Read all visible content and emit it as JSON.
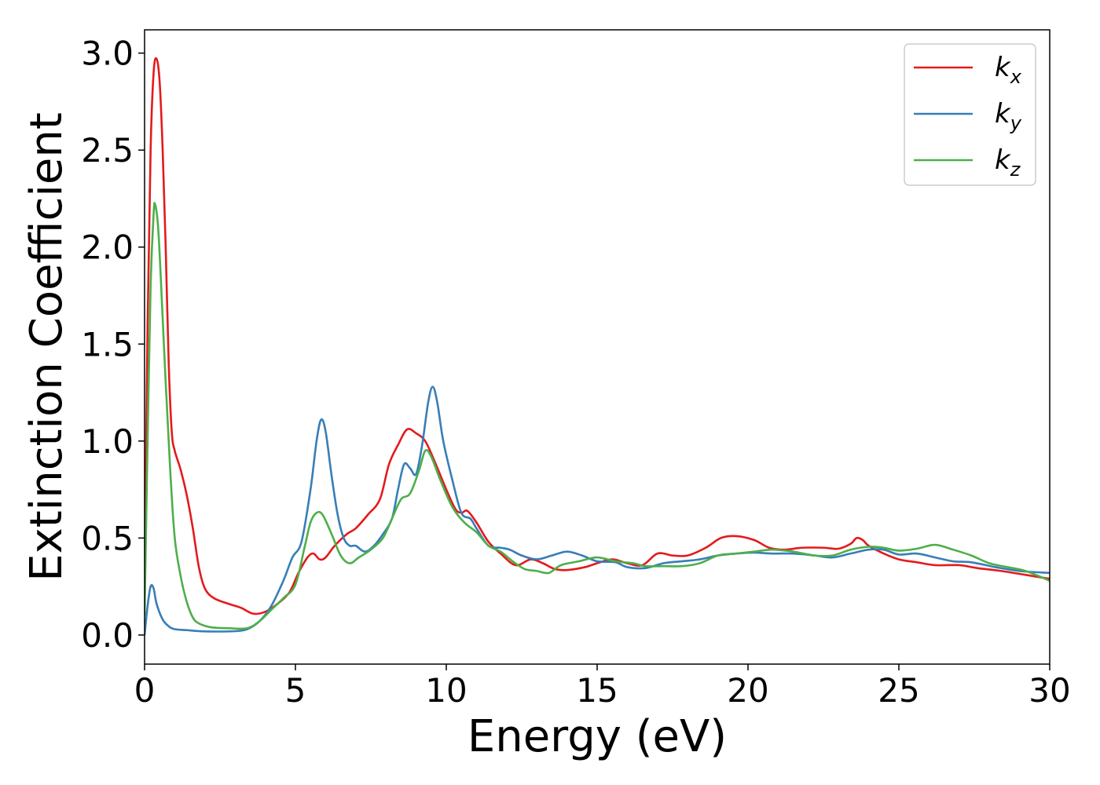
{
  "chart_data": {
    "type": "line",
    "xlabel": "Energy (eV)",
    "ylabel": "Extinction Coefficient",
    "xlim": [
      0,
      30
    ],
    "ylim": [
      -0.15,
      3.12
    ],
    "xticks": [
      "0",
      "5",
      "10",
      "15",
      "20",
      "25",
      "30"
    ],
    "yticks": [
      "0.0",
      "0.5",
      "1.0",
      "1.5",
      "2.0",
      "2.5",
      "3.0"
    ],
    "grid": false,
    "legend_position": "top-right",
    "series": [
      {
        "name": "k",
        "sub": "x",
        "color": "#e41a1c",
        "points": [
          [
            0,
            0.2
          ],
          [
            0.1,
            1.6
          ],
          [
            0.2,
            2.5
          ],
          [
            0.3,
            2.9
          ],
          [
            0.4,
            2.97
          ],
          [
            0.5,
            2.85
          ],
          [
            0.6,
            2.5
          ],
          [
            0.7,
            2.0
          ],
          [
            0.8,
            1.4
          ],
          [
            0.9,
            1.05
          ],
          [
            1.0,
            0.95
          ],
          [
            1.2,
            0.85
          ],
          [
            1.4,
            0.72
          ],
          [
            1.6,
            0.55
          ],
          [
            1.8,
            0.35
          ],
          [
            2.0,
            0.24
          ],
          [
            2.3,
            0.19
          ],
          [
            2.8,
            0.16
          ],
          [
            3.2,
            0.14
          ],
          [
            3.6,
            0.11
          ],
          [
            4.0,
            0.12
          ],
          [
            4.4,
            0.16
          ],
          [
            4.8,
            0.22
          ],
          [
            5.1,
            0.32
          ],
          [
            5.4,
            0.4
          ],
          [
            5.6,
            0.42
          ],
          [
            5.8,
            0.39
          ],
          [
            6.0,
            0.4
          ],
          [
            6.3,
            0.46
          ],
          [
            6.7,
            0.52
          ],
          [
            7.0,
            0.55
          ],
          [
            7.4,
            0.62
          ],
          [
            7.8,
            0.7
          ],
          [
            8.1,
            0.88
          ],
          [
            8.4,
            0.98
          ],
          [
            8.7,
            1.06
          ],
          [
            9.0,
            1.04
          ],
          [
            9.3,
            1.0
          ],
          [
            9.6,
            0.9
          ],
          [
            10.0,
            0.75
          ],
          [
            10.3,
            0.65
          ],
          [
            10.5,
            0.63
          ],
          [
            10.7,
            0.64
          ],
          [
            11.0,
            0.58
          ],
          [
            11.4,
            0.48
          ],
          [
            11.8,
            0.42
          ],
          [
            12.3,
            0.36
          ],
          [
            12.8,
            0.39
          ],
          [
            13.2,
            0.37
          ],
          [
            13.6,
            0.34
          ],
          [
            14.0,
            0.335
          ],
          [
            14.6,
            0.35
          ],
          [
            15.0,
            0.37
          ],
          [
            15.5,
            0.39
          ],
          [
            16.0,
            0.37
          ],
          [
            16.5,
            0.36
          ],
          [
            17.0,
            0.42
          ],
          [
            17.5,
            0.41
          ],
          [
            18.0,
            0.41
          ],
          [
            18.6,
            0.45
          ],
          [
            19.1,
            0.5
          ],
          [
            19.6,
            0.51
          ],
          [
            20.2,
            0.49
          ],
          [
            20.7,
            0.45
          ],
          [
            21.2,
            0.44
          ],
          [
            21.8,
            0.45
          ],
          [
            22.5,
            0.45
          ],
          [
            23.0,
            0.445
          ],
          [
            23.4,
            0.47
          ],
          [
            23.6,
            0.5
          ],
          [
            23.8,
            0.49
          ],
          [
            24.0,
            0.46
          ],
          [
            24.5,
            0.42
          ],
          [
            25.0,
            0.39
          ],
          [
            25.6,
            0.375
          ],
          [
            26.2,
            0.36
          ],
          [
            27.0,
            0.36
          ],
          [
            27.6,
            0.345
          ],
          [
            28.4,
            0.33
          ],
          [
            29.2,
            0.31
          ],
          [
            30.0,
            0.29
          ]
        ]
      },
      {
        "name": "k",
        "sub": "y",
        "color": "#377eb8",
        "points": [
          [
            0,
            0.0
          ],
          [
            0.1,
            0.15
          ],
          [
            0.2,
            0.25
          ],
          [
            0.3,
            0.24
          ],
          [
            0.4,
            0.16
          ],
          [
            0.6,
            0.08
          ],
          [
            0.8,
            0.045
          ],
          [
            1.0,
            0.03
          ],
          [
            1.4,
            0.025
          ],
          [
            1.8,
            0.02
          ],
          [
            2.4,
            0.018
          ],
          [
            3.0,
            0.02
          ],
          [
            3.4,
            0.03
          ],
          [
            3.8,
            0.07
          ],
          [
            4.2,
            0.15
          ],
          [
            4.6,
            0.28
          ],
          [
            4.9,
            0.4
          ],
          [
            5.2,
            0.48
          ],
          [
            5.5,
            0.75
          ],
          [
            5.7,
            1.0
          ],
          [
            5.85,
            1.11
          ],
          [
            6.0,
            1.05
          ],
          [
            6.2,
            0.82
          ],
          [
            6.4,
            0.62
          ],
          [
            6.6,
            0.5
          ],
          [
            6.8,
            0.46
          ],
          [
            7.0,
            0.46
          ],
          [
            7.3,
            0.43
          ],
          [
            7.6,
            0.46
          ],
          [
            7.9,
            0.52
          ],
          [
            8.2,
            0.6
          ],
          [
            8.4,
            0.75
          ],
          [
            8.6,
            0.88
          ],
          [
            8.8,
            0.86
          ],
          [
            9.0,
            0.83
          ],
          [
            9.2,
            0.98
          ],
          [
            9.4,
            1.2
          ],
          [
            9.55,
            1.28
          ],
          [
            9.7,
            1.2
          ],
          [
            9.9,
            1.0
          ],
          [
            10.2,
            0.8
          ],
          [
            10.5,
            0.63
          ],
          [
            10.8,
            0.6
          ],
          [
            11.0,
            0.55
          ],
          [
            11.4,
            0.46
          ],
          [
            11.8,
            0.45
          ],
          [
            12.1,
            0.44
          ],
          [
            12.5,
            0.41
          ],
          [
            13.0,
            0.39
          ],
          [
            13.5,
            0.41
          ],
          [
            14.0,
            0.43
          ],
          [
            14.5,
            0.41
          ],
          [
            15.0,
            0.38
          ],
          [
            15.6,
            0.375
          ],
          [
            16.0,
            0.35
          ],
          [
            16.6,
            0.345
          ],
          [
            17.2,
            0.37
          ],
          [
            17.8,
            0.38
          ],
          [
            18.4,
            0.39
          ],
          [
            19.0,
            0.41
          ],
          [
            19.6,
            0.42
          ],
          [
            20.2,
            0.425
          ],
          [
            20.8,
            0.42
          ],
          [
            21.5,
            0.42
          ],
          [
            22.2,
            0.41
          ],
          [
            22.8,
            0.4
          ],
          [
            23.4,
            0.42
          ],
          [
            24.0,
            0.44
          ],
          [
            24.5,
            0.44
          ],
          [
            25.0,
            0.415
          ],
          [
            25.6,
            0.42
          ],
          [
            26.2,
            0.4
          ],
          [
            26.8,
            0.38
          ],
          [
            27.4,
            0.375
          ],
          [
            28.2,
            0.35
          ],
          [
            29.0,
            0.33
          ],
          [
            30.0,
            0.32
          ]
        ]
      },
      {
        "name": "k",
        "sub": "z",
        "color": "#4daf4a",
        "points": [
          [
            0,
            0.1
          ],
          [
            0.1,
            1.0
          ],
          [
            0.2,
            1.8
          ],
          [
            0.3,
            2.17
          ],
          [
            0.35,
            2.22
          ],
          [
            0.45,
            2.1
          ],
          [
            0.55,
            1.8
          ],
          [
            0.7,
            1.3
          ],
          [
            0.85,
            0.85
          ],
          [
            1.0,
            0.5
          ],
          [
            1.2,
            0.3
          ],
          [
            1.4,
            0.17
          ],
          [
            1.6,
            0.09
          ],
          [
            1.8,
            0.06
          ],
          [
            2.2,
            0.04
          ],
          [
            2.8,
            0.035
          ],
          [
            3.4,
            0.035
          ],
          [
            3.8,
            0.07
          ],
          [
            4.2,
            0.13
          ],
          [
            4.6,
            0.19
          ],
          [
            5.0,
            0.26
          ],
          [
            5.3,
            0.45
          ],
          [
            5.5,
            0.58
          ],
          [
            5.7,
            0.63
          ],
          [
            5.9,
            0.62
          ],
          [
            6.2,
            0.52
          ],
          [
            6.5,
            0.41
          ],
          [
            6.8,
            0.37
          ],
          [
            7.1,
            0.4
          ],
          [
            7.5,
            0.44
          ],
          [
            7.9,
            0.5
          ],
          [
            8.2,
            0.6
          ],
          [
            8.5,
            0.7
          ],
          [
            8.8,
            0.73
          ],
          [
            9.1,
            0.85
          ],
          [
            9.3,
            0.95
          ],
          [
            9.5,
            0.92
          ],
          [
            9.8,
            0.8
          ],
          [
            10.2,
            0.66
          ],
          [
            10.6,
            0.58
          ],
          [
            11.0,
            0.53
          ],
          [
            11.4,
            0.46
          ],
          [
            11.8,
            0.43
          ],
          [
            12.2,
            0.38
          ],
          [
            12.6,
            0.34
          ],
          [
            13.0,
            0.33
          ],
          [
            13.4,
            0.32
          ],
          [
            13.8,
            0.36
          ],
          [
            14.4,
            0.38
          ],
          [
            15.0,
            0.4
          ],
          [
            15.6,
            0.38
          ],
          [
            16.2,
            0.37
          ],
          [
            16.6,
            0.355
          ],
          [
            17.2,
            0.355
          ],
          [
            17.8,
            0.355
          ],
          [
            18.4,
            0.37
          ],
          [
            19.0,
            0.41
          ],
          [
            19.6,
            0.42
          ],
          [
            20.2,
            0.43
          ],
          [
            20.8,
            0.44
          ],
          [
            21.5,
            0.43
          ],
          [
            22.2,
            0.41
          ],
          [
            22.8,
            0.41
          ],
          [
            23.4,
            0.44
          ],
          [
            24.0,
            0.455
          ],
          [
            24.5,
            0.45
          ],
          [
            25.0,
            0.435
          ],
          [
            25.6,
            0.445
          ],
          [
            26.2,
            0.465
          ],
          [
            26.8,
            0.44
          ],
          [
            27.4,
            0.41
          ],
          [
            28.0,
            0.37
          ],
          [
            28.6,
            0.35
          ],
          [
            29.2,
            0.33
          ],
          [
            30.0,
            0.28
          ]
        ]
      }
    ]
  }
}
